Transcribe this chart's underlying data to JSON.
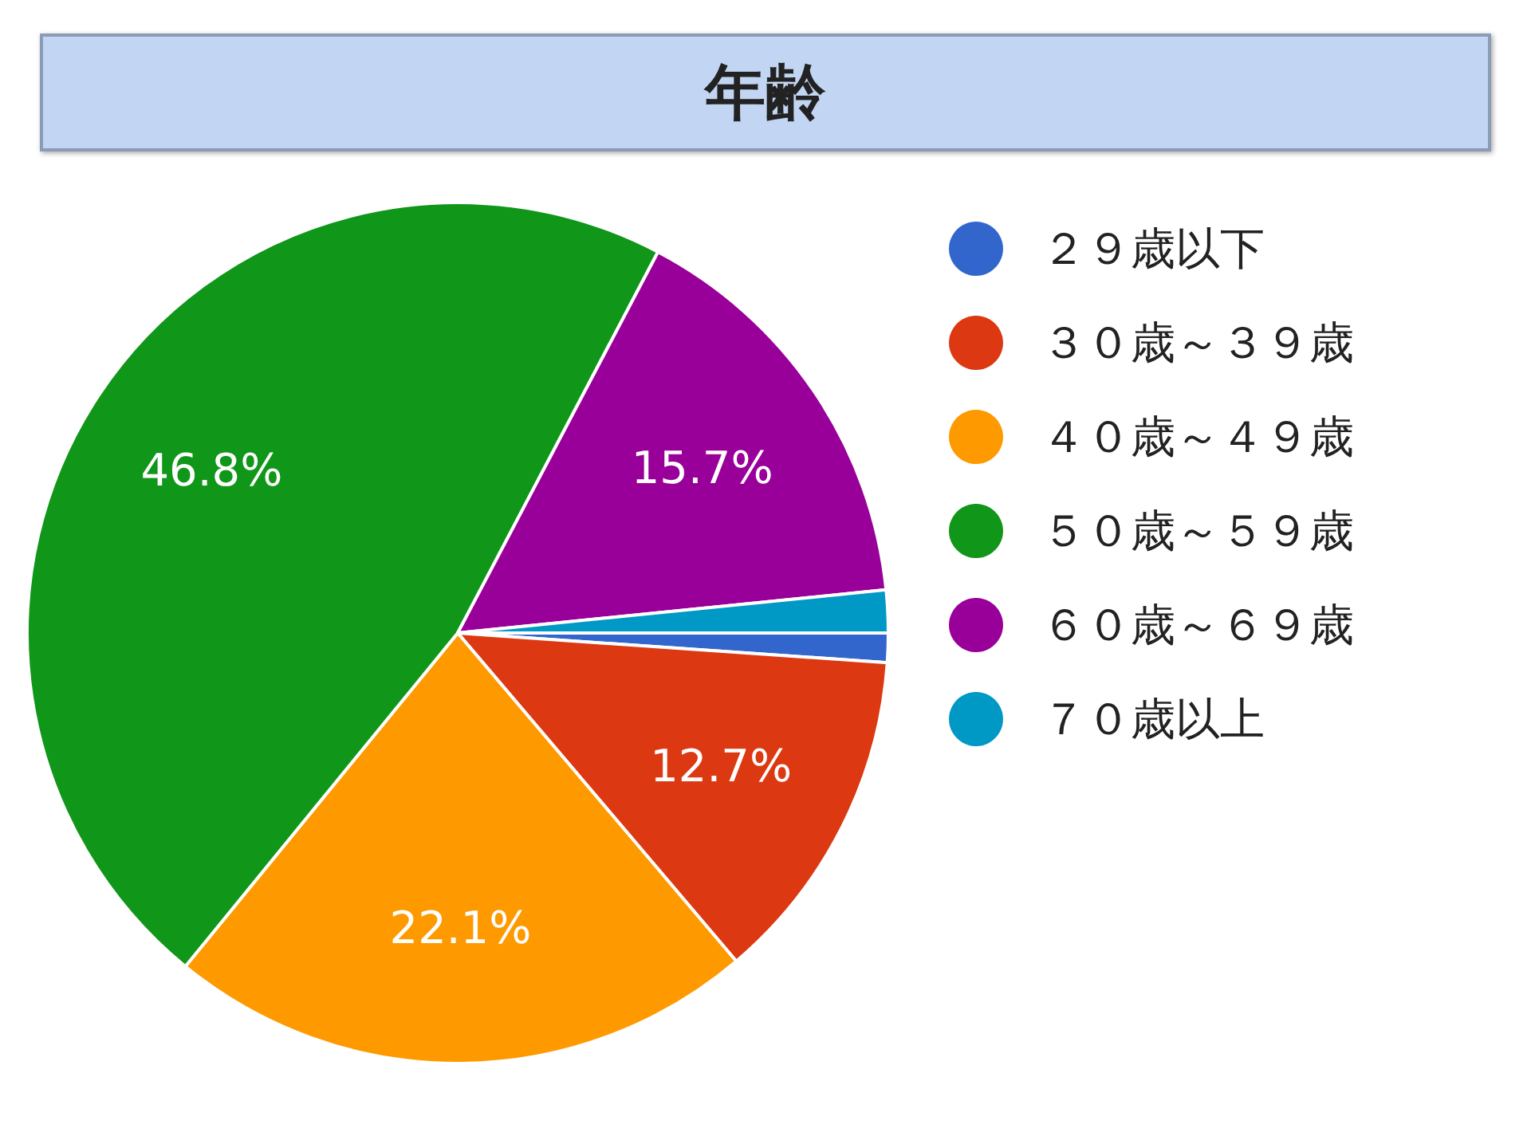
{
  "chart_data": {
    "type": "pie",
    "title": "年齢",
    "categories": [
      "２９歳以下",
      "３０歳～３９歳",
      "４０歳～４９歳",
      "５０歳～５９歳",
      "６０歳～６９歳",
      "７０歳以上"
    ],
    "values": [
      1.1,
      12.7,
      22.1,
      46.8,
      15.7,
      1.6
    ],
    "colors": [
      "#3366cc",
      "#dc3912",
      "#ff9900",
      "#109618",
      "#990099",
      "#0099c6"
    ],
    "value_labels": [
      null,
      "12.7%",
      "22.1%",
      "46.8%",
      "15.7%",
      null
    ],
    "legend": "right"
  }
}
